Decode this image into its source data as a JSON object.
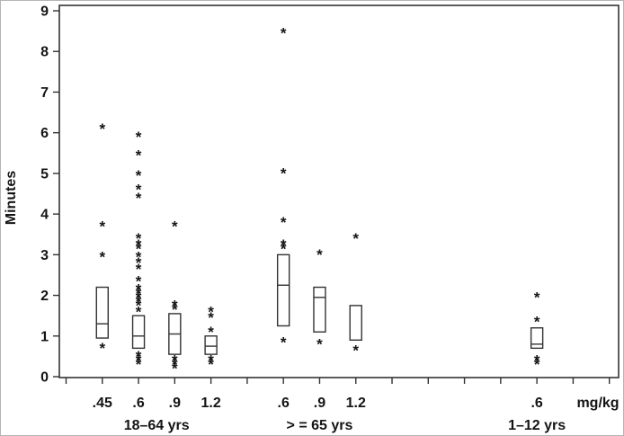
{
  "figure": {
    "title": "",
    "ylabel": "Minutes",
    "xlabel": "mg/kg"
  },
  "chart_data": {
    "type": "boxplot",
    "title": "",
    "ylabel": "Minutes",
    "xlabel": "mg/kg",
    "ylim": [
      0,
      9
    ],
    "yticks": [
      0,
      1,
      2,
      3,
      4,
      5,
      6,
      7,
      8,
      9
    ],
    "grid": false,
    "legend": "none",
    "n_tick_slots": 16,
    "line_color": "#333333",
    "marker": "*",
    "groups": [
      {
        "label": "18–64 yrs",
        "boxes": [
          {
            "dose": ".45",
            "slot": 1,
            "q1": 0.95,
            "median": 1.3,
            "q3": 2.2,
            "outliers": [
              6.15,
              3.75,
              3.0,
              0.75
            ]
          },
          {
            "dose": ".6",
            "slot": 2,
            "q1": 0.7,
            "median": 1.0,
            "q3": 1.5,
            "outliers": [
              5.95,
              5.5,
              5.0,
              4.65,
              4.45,
              3.45,
              3.3,
              3.2,
              3.0,
              2.85,
              2.7,
              2.4,
              2.2,
              2.1,
              2.0,
              1.9,
              1.8,
              1.65,
              0.55,
              0.45,
              0.35
            ]
          },
          {
            "dose": ".9",
            "slot": 3,
            "q1": 0.55,
            "median": 1.05,
            "q3": 1.55,
            "outliers": [
              3.75,
              1.8,
              1.7,
              0.45,
              0.35,
              0.25
            ]
          },
          {
            "dose": "1.2",
            "slot": 4,
            "q1": 0.55,
            "median": 0.75,
            "q3": 1.0,
            "outliers": [
              1.65,
              1.5,
              1.15,
              0.45,
              0.35
            ]
          }
        ]
      },
      {
        "label": "> = 65 yrs",
        "boxes": [
          {
            "dose": ".6",
            "slot": 6,
            "q1": 1.25,
            "median": 2.25,
            "q3": 3.0,
            "outliers": [
              8.5,
              5.05,
              3.85,
              3.3,
              3.2,
              0.9
            ]
          },
          {
            "dose": ".9",
            "slot": 7,
            "q1": 1.1,
            "median": 1.95,
            "q3": 2.2,
            "outliers": [
              3.05,
              0.85
            ]
          },
          {
            "dose": "1.2",
            "slot": 8,
            "q1": 0.9,
            "median": null,
            "q3": 1.75,
            "outliers": [
              3.45,
              0.7
            ]
          }
        ]
      },
      {
        "label": "1–12 yrs",
        "boxes": [
          {
            "dose": ".6",
            "slot": 13,
            "q1": 0.7,
            "median": 0.8,
            "q3": 1.2,
            "outliers": [
              2.0,
              1.4,
              0.45,
              0.35
            ]
          }
        ]
      }
    ]
  }
}
